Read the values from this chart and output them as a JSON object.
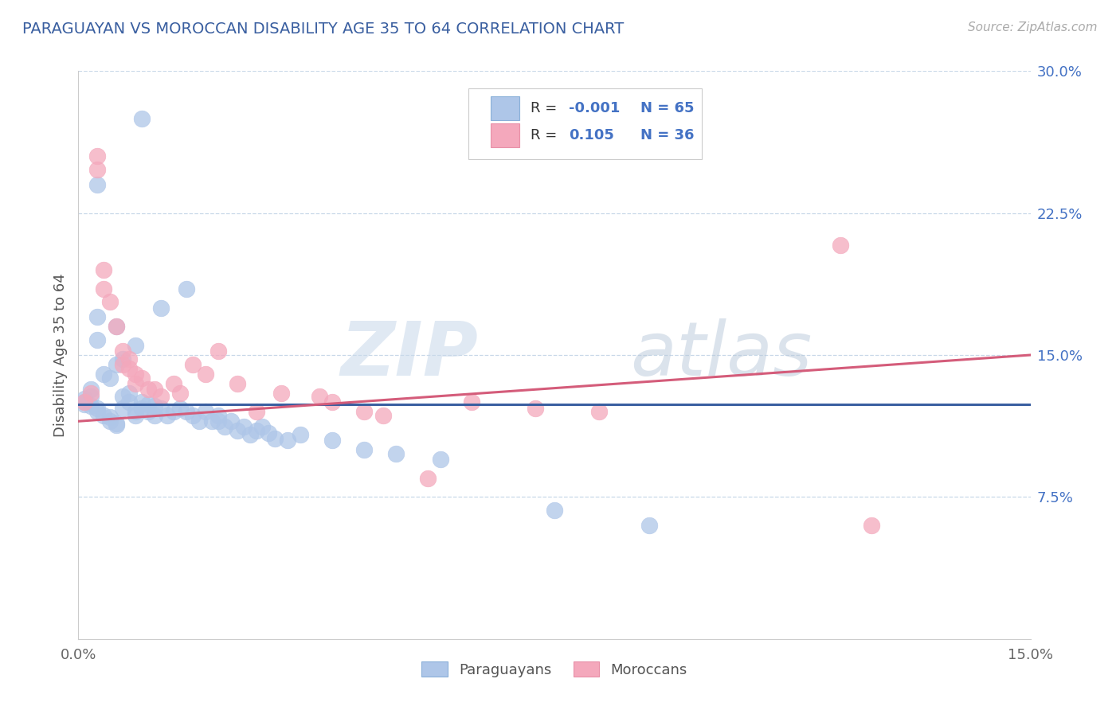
{
  "title": "PARAGUAYAN VS MOROCCAN DISABILITY AGE 35 TO 64 CORRELATION CHART",
  "source": "Source: ZipAtlas.com",
  "ylabel": "Disability Age 35 to 64",
  "xlim": [
    0.0,
    0.15
  ],
  "ylim": [
    0.0,
    0.3
  ],
  "ytick_labels_right": [
    "7.5%",
    "15.0%",
    "22.5%",
    "30.0%"
  ],
  "ytick_vals_right": [
    0.075,
    0.15,
    0.225,
    0.3
  ],
  "watermark_zip": "ZIP",
  "watermark_atlas": "atlas",
  "color_paraguayan": "#aec6e8",
  "color_moroccan": "#f4a8bc",
  "color_line_paraguayan": "#3a5fa0",
  "color_line_moroccan": "#d45c7a",
  "background_color": "#ffffff",
  "grid_color": "#c8d8e8",
  "title_color": "#3a5fa0",
  "par_line_y": [
    0.124,
    0.124
  ],
  "mor_line_y": [
    0.115,
    0.15
  ],
  "par_x": [
    0.01,
    0.003,
    0.017,
    0.013,
    0.003,
    0.006,
    0.003,
    0.009,
    0.007,
    0.006,
    0.004,
    0.005,
    0.002,
    0.002,
    0.001,
    0.001,
    0.001,
    0.002,
    0.003,
    0.003,
    0.004,
    0.005,
    0.005,
    0.006,
    0.006,
    0.007,
    0.007,
    0.008,
    0.008,
    0.009,
    0.009,
    0.01,
    0.01,
    0.011,
    0.011,
    0.012,
    0.012,
    0.013,
    0.014,
    0.015,
    0.016,
    0.017,
    0.018,
    0.019,
    0.02,
    0.021,
    0.022,
    0.022,
    0.023,
    0.024,
    0.025,
    0.026,
    0.027,
    0.028,
    0.029,
    0.03,
    0.031,
    0.033,
    0.035,
    0.04,
    0.045,
    0.05,
    0.057,
    0.075,
    0.09
  ],
  "par_y": [
    0.275,
    0.24,
    0.185,
    0.175,
    0.17,
    0.165,
    0.158,
    0.155,
    0.148,
    0.145,
    0.14,
    0.138,
    0.132,
    0.128,
    0.127,
    0.125,
    0.124,
    0.123,
    0.122,
    0.12,
    0.118,
    0.117,
    0.115,
    0.114,
    0.113,
    0.128,
    0.122,
    0.13,
    0.125,
    0.12,
    0.118,
    0.125,
    0.122,
    0.124,
    0.12,
    0.123,
    0.118,
    0.122,
    0.118,
    0.12,
    0.122,
    0.12,
    0.118,
    0.115,
    0.12,
    0.115,
    0.118,
    0.115,
    0.112,
    0.115,
    0.11,
    0.112,
    0.108,
    0.11,
    0.112,
    0.109,
    0.106,
    0.105,
    0.108,
    0.105,
    0.1,
    0.098,
    0.095,
    0.068,
    0.06
  ],
  "mor_x": [
    0.001,
    0.002,
    0.003,
    0.003,
    0.004,
    0.004,
    0.005,
    0.006,
    0.007,
    0.007,
    0.008,
    0.008,
    0.009,
    0.009,
    0.01,
    0.011,
    0.012,
    0.013,
    0.015,
    0.016,
    0.018,
    0.02,
    0.022,
    0.025,
    0.028,
    0.032,
    0.038,
    0.04,
    0.045,
    0.048,
    0.055,
    0.062,
    0.072,
    0.082,
    0.12,
    0.125
  ],
  "mor_y": [
    0.125,
    0.13,
    0.255,
    0.248,
    0.195,
    0.185,
    0.178,
    0.165,
    0.152,
    0.145,
    0.148,
    0.143,
    0.14,
    0.135,
    0.138,
    0.132,
    0.132,
    0.128,
    0.135,
    0.13,
    0.145,
    0.14,
    0.152,
    0.135,
    0.12,
    0.13,
    0.128,
    0.125,
    0.12,
    0.118,
    0.085,
    0.125,
    0.122,
    0.12,
    0.208,
    0.06
  ]
}
